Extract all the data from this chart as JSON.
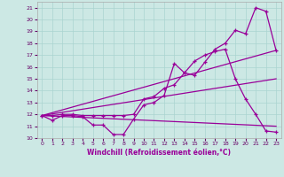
{
  "xlabel": "Windchill (Refroidissement éolien,°C)",
  "bg_color": "#cce8e4",
  "line_color": "#990099",
  "grid_color": "#aad4d0",
  "xlim": [
    -0.5,
    23.5
  ],
  "ylim": [
    10,
    21.5
  ],
  "xticks": [
    0,
    1,
    2,
    3,
    4,
    5,
    6,
    7,
    8,
    9,
    10,
    11,
    12,
    13,
    14,
    15,
    16,
    17,
    18,
    19,
    20,
    21,
    22,
    23
  ],
  "yticks": [
    10,
    11,
    12,
    13,
    14,
    15,
    16,
    17,
    18,
    19,
    20,
    21
  ],
  "line1_x": [
    0,
    1,
    2,
    3,
    4,
    5,
    6,
    7,
    8,
    9,
    10,
    11,
    12,
    13,
    14,
    15,
    16,
    17,
    18,
    19,
    20,
    21,
    22,
    23
  ],
  "line1_y": [
    11.9,
    11.5,
    11.9,
    11.9,
    11.8,
    11.1,
    11.1,
    10.3,
    10.3,
    11.6,
    12.8,
    13.0,
    13.6,
    16.3,
    15.5,
    15.3,
    16.4,
    17.5,
    18.0,
    19.1,
    18.8,
    21.0,
    20.7,
    17.4
  ],
  "line2_x": [
    0,
    1,
    2,
    3,
    4,
    5,
    6,
    7,
    8,
    9,
    10,
    11,
    12,
    13,
    14,
    15,
    16,
    17,
    18,
    19,
    20,
    21,
    22,
    23
  ],
  "line2_y": [
    11.9,
    11.9,
    12.0,
    12.0,
    11.9,
    11.9,
    11.9,
    11.9,
    11.9,
    12.0,
    13.3,
    13.5,
    14.2,
    14.5,
    15.5,
    16.5,
    17.0,
    17.3,
    17.5,
    15.0,
    13.3,
    12.0,
    10.6,
    10.5
  ],
  "line3_x": [
    0,
    23
  ],
  "line3_y": [
    11.9,
    17.4
  ],
  "line4_x": [
    0,
    23
  ],
  "line4_y": [
    11.9,
    15.0
  ],
  "line5_x": [
    0,
    23
  ],
  "line5_y": [
    11.9,
    11.0
  ]
}
